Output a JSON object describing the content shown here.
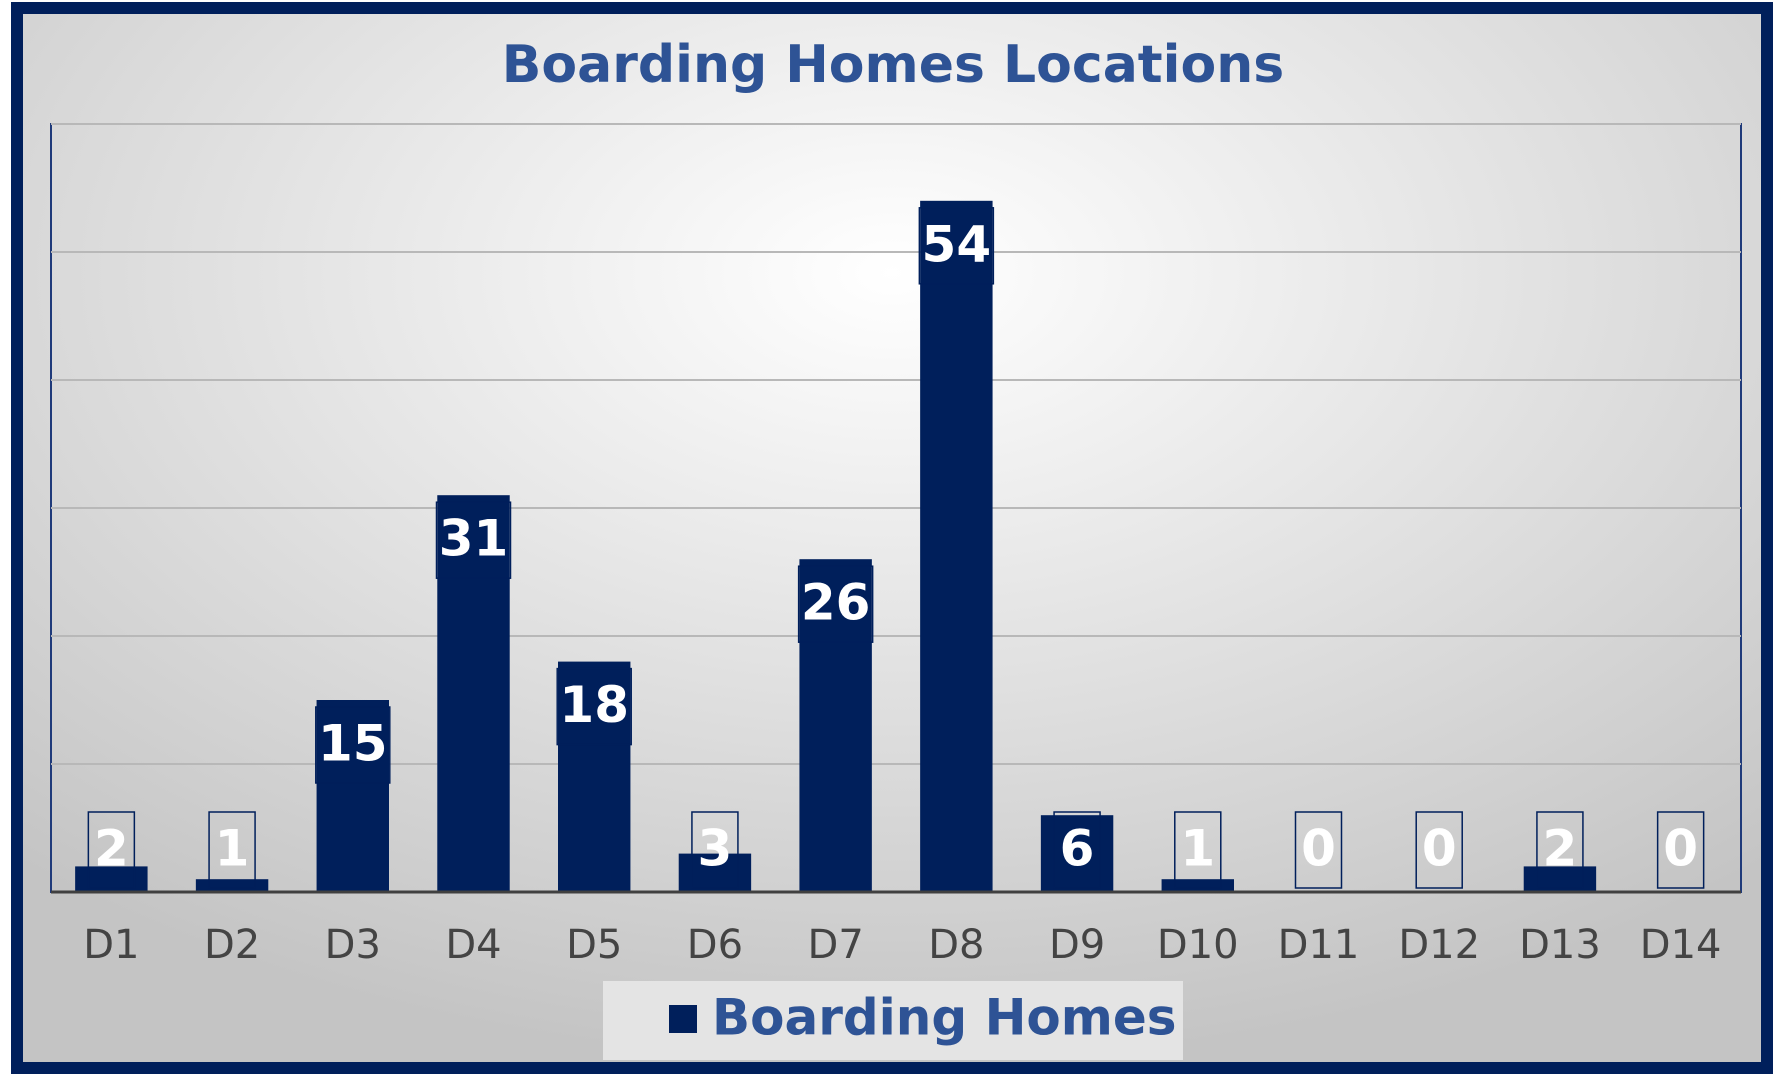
{
  "chart_data": {
    "type": "bar",
    "title": "Boarding Homes Locations",
    "categories": [
      "D1",
      "D2",
      "D3",
      "D4",
      "D5",
      "D6",
      "D7",
      "D8",
      "D9",
      "D10",
      "D11",
      "D12",
      "D13",
      "D14"
    ],
    "series": [
      {
        "name": "Boarding Homes",
        "color": "#001f5b",
        "values": [
          2,
          1,
          15,
          31,
          18,
          3,
          26,
          54,
          6,
          1,
          0,
          0,
          2,
          0
        ]
      }
    ],
    "ylim": [
      0,
      60
    ],
    "yticks": [
      0,
      10,
      20,
      30,
      40,
      50,
      60
    ],
    "grid": true,
    "legend": "bottom"
  }
}
